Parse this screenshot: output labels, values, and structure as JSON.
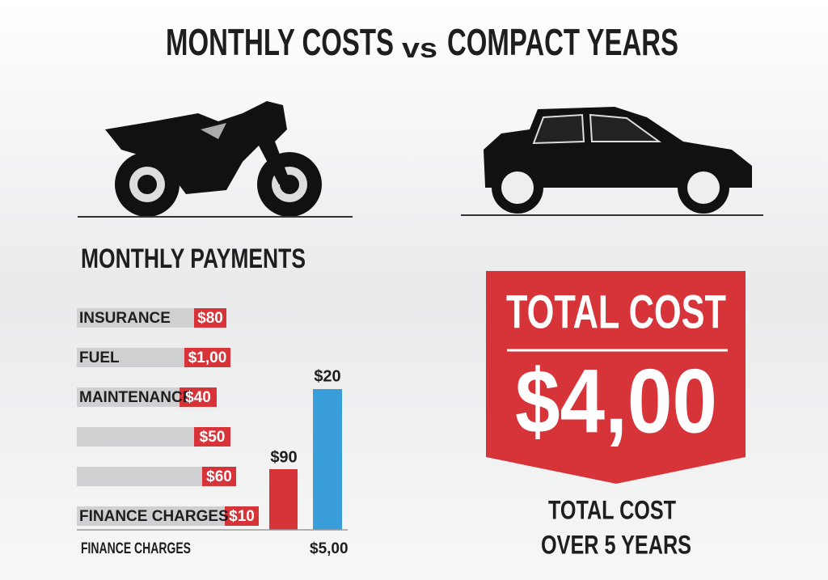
{
  "title": {
    "left": "MONTHLY COSTS",
    "joiner": "vs",
    "right": "COMPACT YEARS"
  },
  "payments": {
    "heading": "MONTHLY PAYMENTS",
    "rows": [
      {
        "label": "INSURANCE",
        "amount": "$80"
      },
      {
        "label": "FUEL",
        "amount": "$1,00"
      },
      {
        "label": "MAINTENANCE",
        "amount": "$40"
      },
      {
        "amount": "$50"
      },
      {
        "amount": "$60"
      },
      {
        "label": "FINANCE CHARGES",
        "amount": "$10"
      }
    ],
    "columns": [
      {
        "label": "$90"
      },
      {
        "label": "$20"
      }
    ],
    "footer_left": "FINANCE CHARGES",
    "footer_right": "$5,00"
  },
  "total": {
    "heading": "TOTAL COST",
    "amount": "$4,00",
    "caption": [
      "TOTAL COST",
      "OVER 5 YEARS"
    ]
  }
}
